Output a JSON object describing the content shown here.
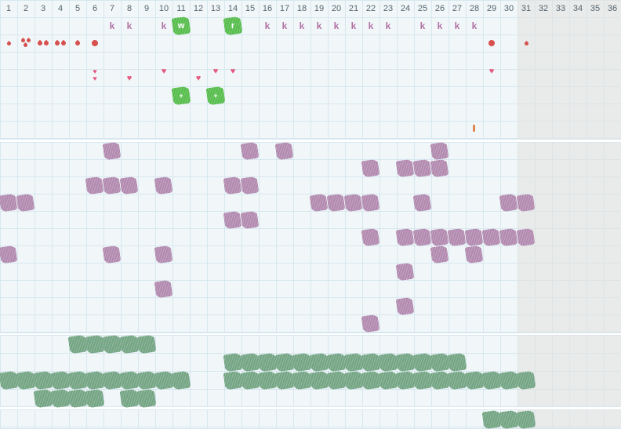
{
  "app": {
    "title": "cycle tracking chart"
  },
  "grid": {
    "columns": 36,
    "header_labels": [
      "1",
      "2",
      "3",
      "4",
      "5",
      "6",
      "7",
      "8",
      "9",
      "10",
      "11",
      "12",
      "13",
      "14",
      "15",
      "16",
      "17",
      "18",
      "19",
      "20",
      "21",
      "22",
      "23",
      "24",
      "25",
      "26",
      "27",
      "28",
      "29",
      "30",
      "31",
      "32",
      "33",
      "34",
      "35",
      "36"
    ],
    "inactive_start_column": 31
  },
  "colors": {
    "panel_bg": "#f1f7f9",
    "grid_line": "#d7e7ef",
    "inactive_bg": "#e9eaea",
    "inactive_line": "#dde4e7",
    "header_text": "#54646c",
    "k_text": "#b272a4",
    "red": "#d6504e",
    "pink": "#e45880",
    "purple": "#b289af",
    "bright_green": "#55bc4a",
    "sage_green": "#73a483",
    "orange": "#e08552"
  },
  "icons": {
    "heart": "♥"
  },
  "top_panel": {
    "k_label": "k",
    "k_columns": [
      7,
      8,
      10,
      16,
      17,
      18,
      19,
      20,
      21,
      22,
      23,
      25,
      26,
      27,
      28
    ],
    "letter_blobs": [
      {
        "col": 11,
        "letter": "w"
      },
      {
        "col": 14,
        "letter": "r"
      }
    ],
    "bleeding": [
      {
        "col": 1,
        "type": "drop-small"
      },
      {
        "col": 2,
        "type": "drop-triple"
      },
      {
        "col": 3,
        "type": "drop-double"
      },
      {
        "col": 4,
        "type": "drop-double"
      },
      {
        "col": 5,
        "type": "drop"
      },
      {
        "col": 6,
        "type": "dot"
      },
      {
        "col": 29,
        "type": "dot"
      },
      {
        "col": 31,
        "type": "drop-small"
      }
    ],
    "hearts": [
      {
        "col": 6,
        "count": 2,
        "offset": "high"
      },
      {
        "col": 8,
        "count": 1,
        "offset": "low"
      },
      {
        "col": 10,
        "count": 1,
        "offset": "high"
      },
      {
        "col": 12,
        "count": 1,
        "offset": "low"
      },
      {
        "col": 13,
        "count": 1,
        "offset": "high"
      },
      {
        "col": 14,
        "count": 1,
        "offset": "high"
      },
      {
        "col": 29,
        "count": 1,
        "offset": "high"
      }
    ],
    "plus_label": "+",
    "plus_blobs": [
      {
        "col": 11
      },
      {
        "col": 13
      }
    ],
    "note_mark": {
      "col": 28
    }
  },
  "middle_panel": {
    "rows": [
      [
        7,
        15,
        17,
        26
      ],
      [
        22,
        24,
        25,
        26
      ],
      [
        6,
        7,
        8,
        10,
        14,
        15
      ],
      [
        1,
        2,
        19,
        20,
        21,
        22,
        25,
        30,
        31
      ],
      [
        14,
        15
      ],
      [
        22,
        24,
        25,
        26,
        27,
        28,
        29,
        30,
        31
      ],
      [
        1,
        7,
        10,
        26,
        28
      ],
      [
        24
      ],
      [
        10
      ],
      [
        24
      ],
      [
        22
      ]
    ]
  },
  "green_panel": {
    "rows": [
      [
        5,
        6,
        7,
        8,
        9
      ],
      [
        14,
        15,
        16,
        17,
        18,
        19,
        20,
        21,
        22,
        23,
        24,
        25,
        26,
        27
      ],
      [
        1,
        2,
        3,
        4,
        5,
        6,
        7,
        8,
        9,
        10,
        11,
        14,
        15,
        16,
        17,
        18,
        19,
        20,
        21,
        22,
        23,
        24,
        25,
        26,
        27,
        28,
        29,
        30,
        31
      ],
      [
        3,
        4,
        5,
        6,
        8,
        9
      ]
    ]
  },
  "bottom_panel": {
    "cols": [
      29,
      30,
      31
    ]
  }
}
